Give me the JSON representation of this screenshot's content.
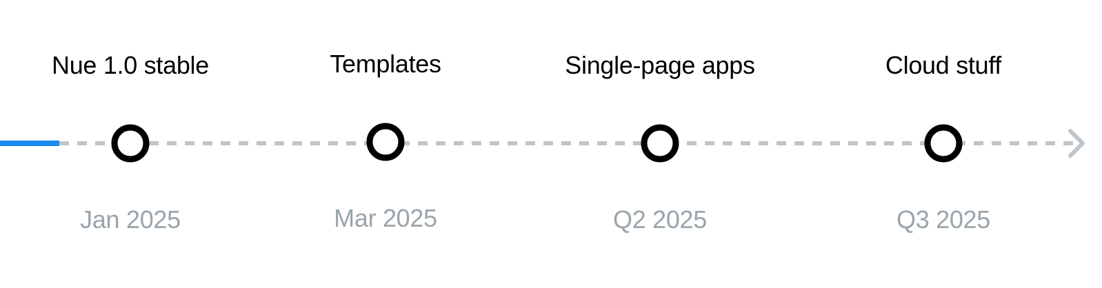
{
  "colors": {
    "progress": "#1a8cf0",
    "track": "#bcc6cc",
    "node_stroke": "#000000",
    "node_fill": "#ffffff",
    "title": "#000000",
    "date": "#9aa4ab"
  },
  "milestones": [
    {
      "title": "Nue 1.0 stable",
      "date": "Jan 2025"
    },
    {
      "title": "Templates",
      "date": "Mar 2025"
    },
    {
      "title": "Single-page apps",
      "date": "Q2 2025"
    },
    {
      "title": "Cloud stuff",
      "date": "Q3 2025"
    }
  ],
  "arrow_icon": "chevron-right-icon"
}
